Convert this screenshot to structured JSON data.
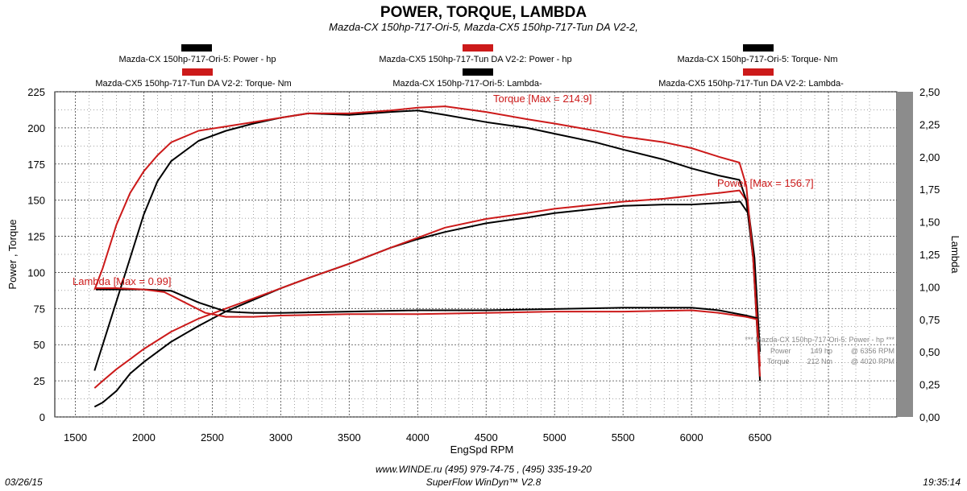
{
  "header": {
    "title": "POWER, TORQUE, LAMBDA",
    "subtitle": "Mazda-CX 150hp-717-Ori-5, Mazda-CX5 150hp-717-Tun DA V2-2,"
  },
  "colors": {
    "ori": "#000000",
    "tun": "#cc1a1a"
  },
  "footer": {
    "date": "03/26/15",
    "time": "19:35:14",
    "line1": "www.WINDE.ru  (495) 979-74-75 , (495) 335-19-20",
    "line2": "SuperFlow WinDyn™ V2.8"
  },
  "info_box": {
    "line1": "*** Mazda-CX 150hp-717-Ori-5: Power - hp ***",
    "power_label": "Power",
    "power_value": "149 hp",
    "power_rpm": "@ 6356 RPM",
    "torque_label": "Torque",
    "torque_value": "212 Nm",
    "torque_rpm": "@ 4020 RPM"
  },
  "chart_data": {
    "type": "line",
    "title": "POWER, TORQUE, LAMBDA",
    "xlabel": "EngSpd  RPM",
    "ylabel": "Power , Torque",
    "y2label": "Lambda",
    "xlim": [
      1350,
      7500
    ],
    "ylim": [
      0,
      225
    ],
    "y2lim": [
      0,
      2.5
    ],
    "xticks": [
      "1500",
      "2000",
      "2500",
      "3000",
      "3500",
      "4000",
      "4500",
      "5000",
      "5500",
      "6000",
      "6500"
    ],
    "yticks": [
      "0",
      "25",
      "50",
      "75",
      "100",
      "125",
      "150",
      "175",
      "200",
      "225"
    ],
    "y2ticks": [
      "0,00",
      "0,25",
      "0,50",
      "0,75",
      "1,00",
      "1,25",
      "1,50",
      "1,75",
      "2,00",
      "2,25",
      "2,50"
    ],
    "grid": true,
    "legend_position": "top",
    "annotations": [
      {
        "text": "Torque [Max = 214.9]",
        "x": 4200,
        "y": 216,
        "series": "tun_torque"
      },
      {
        "text": "Power  [Max = 156.7]",
        "x": 6400,
        "y": 157,
        "series": "tun_power"
      },
      {
        "text": "Lambda [Max = 0.99]",
        "x": 1650,
        "y": 89,
        "series": "tun_lambda"
      }
    ],
    "series": [
      {
        "id": "ori_power",
        "name": "Mazda-CX  150hp-717-Ori-5: Power -  hp",
        "color": "ori",
        "axis": "left",
        "x": [
          1640,
          1700,
          1800,
          1900,
          2000,
          2200,
          2400,
          2600,
          2800,
          3000,
          3200,
          3500,
          3800,
          4000,
          4200,
          4500,
          4800,
          5000,
          5300,
          5500,
          5800,
          6000,
          6200,
          6356,
          6420,
          6460,
          6500
        ],
        "y": [
          7,
          10,
          18,
          30,
          38,
          52,
          63,
          73,
          81,
          89,
          96,
          106,
          117,
          123,
          128,
          134,
          138,
          141,
          144,
          146,
          147,
          147,
          148,
          149,
          140,
          110,
          45
        ]
      },
      {
        "id": "tun_power",
        "name": "Mazda-CX5  150hp-717-Tun DA V2-2: Power -  hp",
        "color": "tun",
        "axis": "left",
        "x": [
          1640,
          1700,
          1800,
          1900,
          2000,
          2200,
          2400,
          2600,
          2800,
          3000,
          3200,
          3500,
          3800,
          4000,
          4200,
          4500,
          4800,
          5000,
          5300,
          5500,
          5800,
          6000,
          6200,
          6350,
          6400,
          6450,
          6500
        ],
        "y": [
          20,
          25,
          33,
          40,
          47,
          59,
          68,
          75,
          82,
          89,
          96,
          106,
          117,
          124,
          131,
          137,
          141,
          144,
          147,
          149,
          151,
          153,
          155,
          156.7,
          150,
          110,
          35
        ]
      },
      {
        "id": "ori_torque",
        "name": "Mazda-CX  150hp-717-Ori-5: Torque-  Nm",
        "color": "ori",
        "axis": "left",
        "x": [
          1640,
          1700,
          1800,
          1900,
          2000,
          2100,
          2200,
          2400,
          2600,
          2800,
          3000,
          3200,
          3500,
          3800,
          4000,
          4200,
          4500,
          4800,
          5000,
          5300,
          5500,
          5800,
          6000,
          6200,
          6350,
          6400,
          6450,
          6500
        ],
        "y": [
          32,
          50,
          80,
          110,
          140,
          163,
          177,
          191,
          198,
          203,
          207,
          210,
          209,
          211,
          212,
          209,
          204,
          200,
          196,
          190,
          185,
          178,
          172,
          167,
          164,
          150,
          110,
          25
        ]
      },
      {
        "id": "tun_torque",
        "name": "Mazda-CX5  150hp-717-Tun DA V2-2: Torque-  Nm",
        "color": "tun",
        "axis": "left",
        "x": [
          1640,
          1700,
          1800,
          1900,
          2000,
          2100,
          2200,
          2400,
          2600,
          2800,
          3000,
          3200,
          3500,
          3800,
          4000,
          4200,
          4500,
          4800,
          5000,
          5300,
          5500,
          5800,
          6000,
          6200,
          6350,
          6400,
          6450,
          6500
        ],
        "y": [
          88,
          103,
          133,
          155,
          170,
          181,
          190,
          198,
          201,
          204,
          207,
          210,
          210,
          212,
          214,
          214.9,
          211,
          206,
          203,
          198,
          194,
          190,
          186,
          180,
          176,
          160,
          110,
          28
        ]
      },
      {
        "id": "ori_lambda",
        "name": "Mazda-CX  150hp-717-Ori-5: Lambda-",
        "color": "ori",
        "axis": "right",
        "x": [
          1650,
          1800,
          2000,
          2200,
          2400,
          2600,
          2800,
          3000,
          3500,
          4000,
          4500,
          5000,
          5500,
          6000,
          6200,
          6400,
          6480
        ],
        "y": [
          0.98,
          0.98,
          0.98,
          0.97,
          0.88,
          0.81,
          0.8,
          0.8,
          0.81,
          0.82,
          0.82,
          0.83,
          0.84,
          0.84,
          0.82,
          0.78,
          0.76
        ]
      },
      {
        "id": "tun_lambda",
        "name": "Mazda-CX5  150hp-717-Tun DA V2-2: Lambda-",
        "color": "tun",
        "axis": "right",
        "x": [
          1650,
          1800,
          2000,
          2150,
          2300,
          2450,
          2600,
          2800,
          3000,
          3500,
          4000,
          4500,
          5000,
          5500,
          6000,
          6200,
          6400,
          6480
        ],
        "y": [
          0.99,
          0.99,
          0.98,
          0.96,
          0.88,
          0.8,
          0.77,
          0.77,
          0.78,
          0.79,
          0.79,
          0.8,
          0.81,
          0.81,
          0.82,
          0.8,
          0.77,
          0.75
        ]
      }
    ]
  }
}
